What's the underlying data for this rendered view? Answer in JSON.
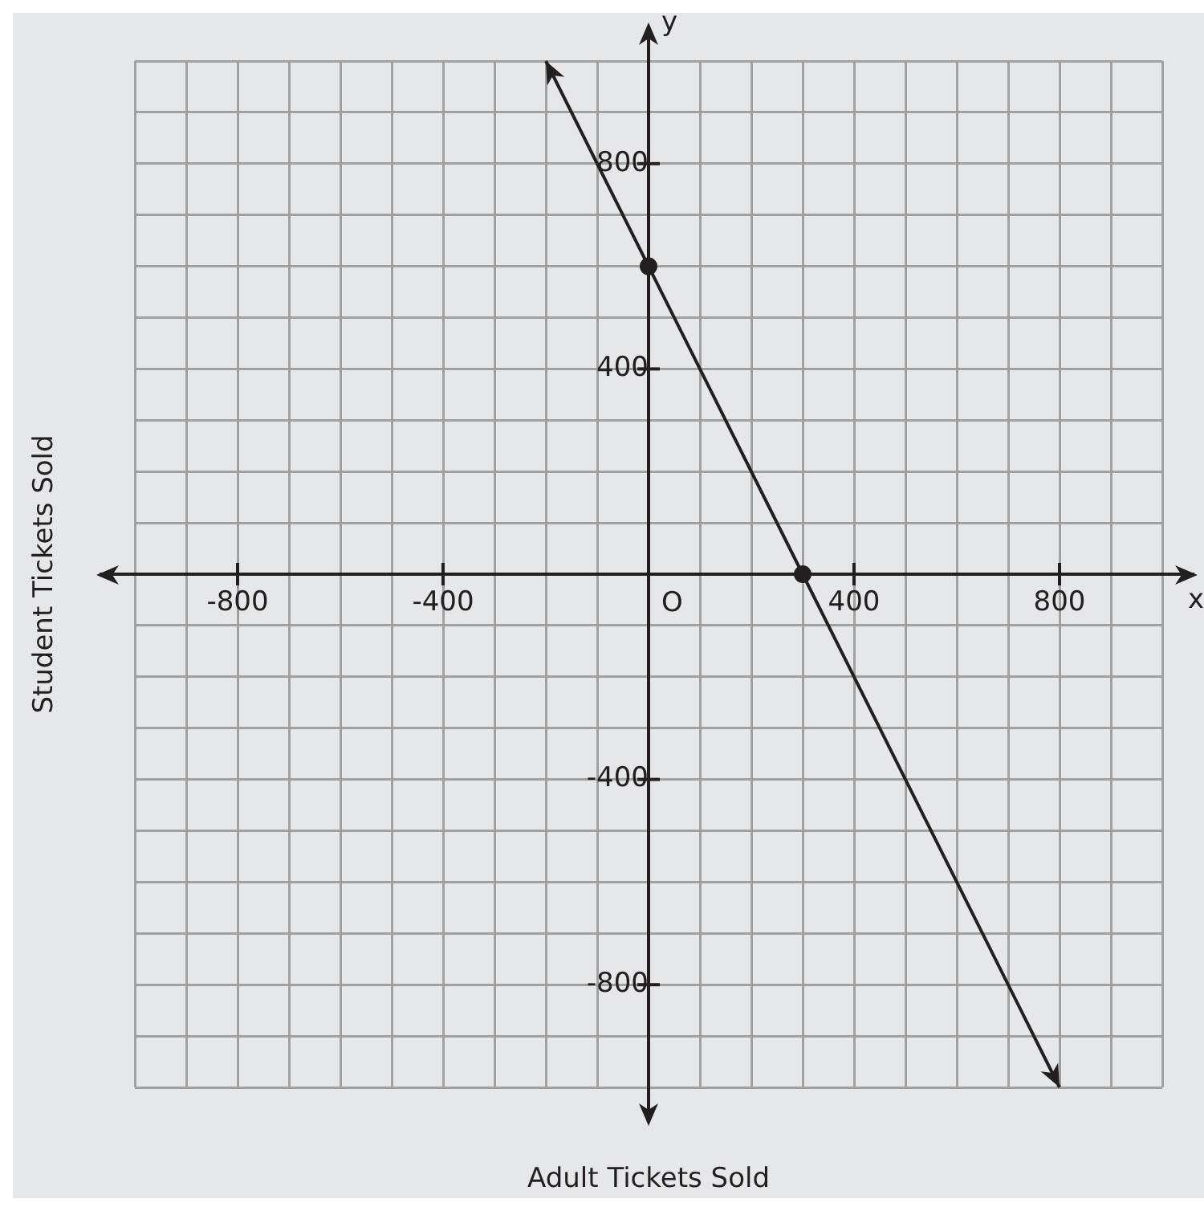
{
  "chart_data": {
    "type": "line",
    "xlabel": "Adult Tickets Sold",
    "ylabel": "Student Tickets Sold",
    "annotations": [
      "O",
      "x",
      "y"
    ],
    "series": [
      {
        "color": "#231f20",
        "x": [
          -200,
          0,
          300,
          800
        ],
        "values": [
          1000,
          600,
          0,
          -1000
        ],
        "marker": "none"
      },
      {
        "type": "scatter",
        "color": "#231f20",
        "x": [
          0,
          300
        ],
        "values": [
          600,
          0
        ]
      }
    ],
    "marker": "circle",
    "line_style": "solid",
    "grid": true,
    "legend": false,
    "xlim": [
      -1000,
      1000
    ],
    "ylim": [
      -1000,
      1000
    ],
    "xticks": [
      {
        "value": -1000,
        "label": null
      },
      {
        "value": -900,
        "label": null
      },
      -800,
      {
        "value": -700,
        "label": null
      },
      {
        "value": -600,
        "label": null
      },
      {
        "value": -500,
        "label": null
      },
      -400,
      {
        "value": -300,
        "label": null
      },
      {
        "value": -200,
        "label": null
      },
      {
        "value": -100,
        "label": null
      },
      {
        "value": 0,
        "label": null
      },
      {
        "value": 100,
        "label": null
      },
      {
        "value": 200,
        "label": null
      },
      {
        "value": 300,
        "label": null
      },
      400,
      {
        "value": 500,
        "label": null
      },
      {
        "value": 600,
        "label": null
      },
      {
        "value": 700,
        "label": null
      },
      800,
      {
        "value": 900,
        "label": null
      },
      {
        "value": 1000,
        "label": null
      }
    ],
    "yticks": [
      {
        "value": -1000,
        "label": null
      },
      {
        "value": -900,
        "label": null
      },
      -800,
      {
        "value": -700,
        "label": null
      },
      {
        "value": -600,
        "label": null
      },
      {
        "value": -500,
        "label": null
      },
      -400,
      {
        "value": -300,
        "label": null
      },
      {
        "value": -200,
        "label": null
      },
      {
        "value": -100,
        "label": null
      },
      {
        "value": 0,
        "label": null
      },
      {
        "value": 100,
        "label": null
      },
      {
        "value": 200,
        "label": null
      },
      {
        "value": 300,
        "label": null
      },
      400,
      {
        "value": 500,
        "label": null
      },
      {
        "value": 600,
        "label": null
      },
      {
        "value": 700,
        "label": null
      },
      800,
      {
        "value": 900,
        "label": null
      },
      {
        "value": 1000,
        "label": null
      }
    ]
  }
}
